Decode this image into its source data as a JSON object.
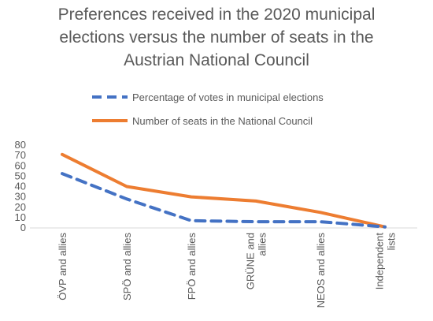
{
  "chart_data": {
    "type": "line",
    "title_lines": [
      "Preferences received in the 2020 municipal",
      "elections versus the number of seats in the",
      "Austrian National Council"
    ],
    "categories": [
      [
        "ÖVP and allies"
      ],
      [
        "SPÖ and allies"
      ],
      [
        "FPÖ and allies"
      ],
      [
        "GRÜNE and",
        "allies"
      ],
      [
        "NEOS and allies"
      ],
      [
        "Independent",
        "lists"
      ]
    ],
    "series": [
      {
        "name": "Percentage of votes in municipal elections",
        "values": [
          52.5,
          28,
          7,
          6,
          6,
          1
        ],
        "color": "#4472C4",
        "dash": true
      },
      {
        "name": "Number of seats in the National Council",
        "values": [
          71,
          40,
          30,
          26,
          15,
          1
        ],
        "color": "#ED7D31",
        "dash": false
      }
    ],
    "ylim": [
      0,
      80
    ],
    "yticks": [
      0,
      10,
      20,
      30,
      40,
      50,
      60,
      70,
      80
    ],
    "legend_position": "top",
    "grid": false
  }
}
